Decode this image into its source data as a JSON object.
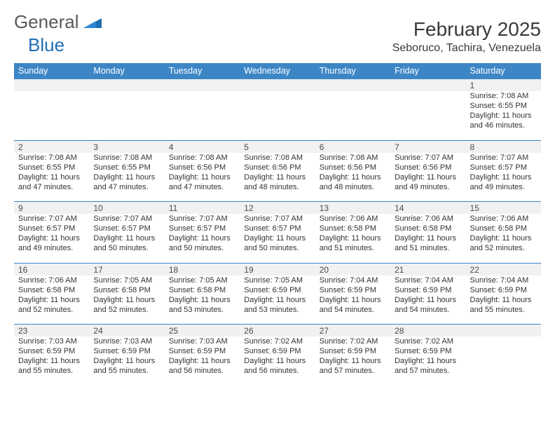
{
  "logo": {
    "word1": "General",
    "word2": "Blue"
  },
  "title": "February 2025",
  "location": "Seboruco, Tachira, Venezuela",
  "colors": {
    "header_bg": "#3d86c6",
    "header_text": "#ffffff",
    "rule": "#3d86c6",
    "shade": "#f1f1f1",
    "text": "#333333",
    "logo_gray": "#5a5a5a",
    "logo_blue": "#1f6fb2"
  },
  "day_headers": [
    "Sunday",
    "Monday",
    "Tuesday",
    "Wednesday",
    "Thursday",
    "Friday",
    "Saturday"
  ],
  "weeks": [
    [
      null,
      null,
      null,
      null,
      null,
      null,
      {
        "n": "1",
        "sr": "Sunrise: 7:08 AM",
        "ss": "Sunset: 6:55 PM",
        "dl": "Daylight: 11 hours and 46 minutes."
      }
    ],
    [
      {
        "n": "2",
        "sr": "Sunrise: 7:08 AM",
        "ss": "Sunset: 6:55 PM",
        "dl": "Daylight: 11 hours and 47 minutes."
      },
      {
        "n": "3",
        "sr": "Sunrise: 7:08 AM",
        "ss": "Sunset: 6:55 PM",
        "dl": "Daylight: 11 hours and 47 minutes."
      },
      {
        "n": "4",
        "sr": "Sunrise: 7:08 AM",
        "ss": "Sunset: 6:56 PM",
        "dl": "Daylight: 11 hours and 47 minutes."
      },
      {
        "n": "5",
        "sr": "Sunrise: 7:08 AM",
        "ss": "Sunset: 6:56 PM",
        "dl": "Daylight: 11 hours and 48 minutes."
      },
      {
        "n": "6",
        "sr": "Sunrise: 7:08 AM",
        "ss": "Sunset: 6:56 PM",
        "dl": "Daylight: 11 hours and 48 minutes."
      },
      {
        "n": "7",
        "sr": "Sunrise: 7:07 AM",
        "ss": "Sunset: 6:56 PM",
        "dl": "Daylight: 11 hours and 49 minutes."
      },
      {
        "n": "8",
        "sr": "Sunrise: 7:07 AM",
        "ss": "Sunset: 6:57 PM",
        "dl": "Daylight: 11 hours and 49 minutes."
      }
    ],
    [
      {
        "n": "9",
        "sr": "Sunrise: 7:07 AM",
        "ss": "Sunset: 6:57 PM",
        "dl": "Daylight: 11 hours and 49 minutes."
      },
      {
        "n": "10",
        "sr": "Sunrise: 7:07 AM",
        "ss": "Sunset: 6:57 PM",
        "dl": "Daylight: 11 hours and 50 minutes."
      },
      {
        "n": "11",
        "sr": "Sunrise: 7:07 AM",
        "ss": "Sunset: 6:57 PM",
        "dl": "Daylight: 11 hours and 50 minutes."
      },
      {
        "n": "12",
        "sr": "Sunrise: 7:07 AM",
        "ss": "Sunset: 6:57 PM",
        "dl": "Daylight: 11 hours and 50 minutes."
      },
      {
        "n": "13",
        "sr": "Sunrise: 7:06 AM",
        "ss": "Sunset: 6:58 PM",
        "dl": "Daylight: 11 hours and 51 minutes."
      },
      {
        "n": "14",
        "sr": "Sunrise: 7:06 AM",
        "ss": "Sunset: 6:58 PM",
        "dl": "Daylight: 11 hours and 51 minutes."
      },
      {
        "n": "15",
        "sr": "Sunrise: 7:06 AM",
        "ss": "Sunset: 6:58 PM",
        "dl": "Daylight: 11 hours and 52 minutes."
      }
    ],
    [
      {
        "n": "16",
        "sr": "Sunrise: 7:06 AM",
        "ss": "Sunset: 6:58 PM",
        "dl": "Daylight: 11 hours and 52 minutes."
      },
      {
        "n": "17",
        "sr": "Sunrise: 7:05 AM",
        "ss": "Sunset: 6:58 PM",
        "dl": "Daylight: 11 hours and 52 minutes."
      },
      {
        "n": "18",
        "sr": "Sunrise: 7:05 AM",
        "ss": "Sunset: 6:58 PM",
        "dl": "Daylight: 11 hours and 53 minutes."
      },
      {
        "n": "19",
        "sr": "Sunrise: 7:05 AM",
        "ss": "Sunset: 6:59 PM",
        "dl": "Daylight: 11 hours and 53 minutes."
      },
      {
        "n": "20",
        "sr": "Sunrise: 7:04 AM",
        "ss": "Sunset: 6:59 PM",
        "dl": "Daylight: 11 hours and 54 minutes."
      },
      {
        "n": "21",
        "sr": "Sunrise: 7:04 AM",
        "ss": "Sunset: 6:59 PM",
        "dl": "Daylight: 11 hours and 54 minutes."
      },
      {
        "n": "22",
        "sr": "Sunrise: 7:04 AM",
        "ss": "Sunset: 6:59 PM",
        "dl": "Daylight: 11 hours and 55 minutes."
      }
    ],
    [
      {
        "n": "23",
        "sr": "Sunrise: 7:03 AM",
        "ss": "Sunset: 6:59 PM",
        "dl": "Daylight: 11 hours and 55 minutes."
      },
      {
        "n": "24",
        "sr": "Sunrise: 7:03 AM",
        "ss": "Sunset: 6:59 PM",
        "dl": "Daylight: 11 hours and 55 minutes."
      },
      {
        "n": "25",
        "sr": "Sunrise: 7:03 AM",
        "ss": "Sunset: 6:59 PM",
        "dl": "Daylight: 11 hours and 56 minutes."
      },
      {
        "n": "26",
        "sr": "Sunrise: 7:02 AM",
        "ss": "Sunset: 6:59 PM",
        "dl": "Daylight: 11 hours and 56 minutes."
      },
      {
        "n": "27",
        "sr": "Sunrise: 7:02 AM",
        "ss": "Sunset: 6:59 PM",
        "dl": "Daylight: 11 hours and 57 minutes."
      },
      {
        "n": "28",
        "sr": "Sunrise: 7:02 AM",
        "ss": "Sunset: 6:59 PM",
        "dl": "Daylight: 11 hours and 57 minutes."
      },
      null
    ]
  ]
}
